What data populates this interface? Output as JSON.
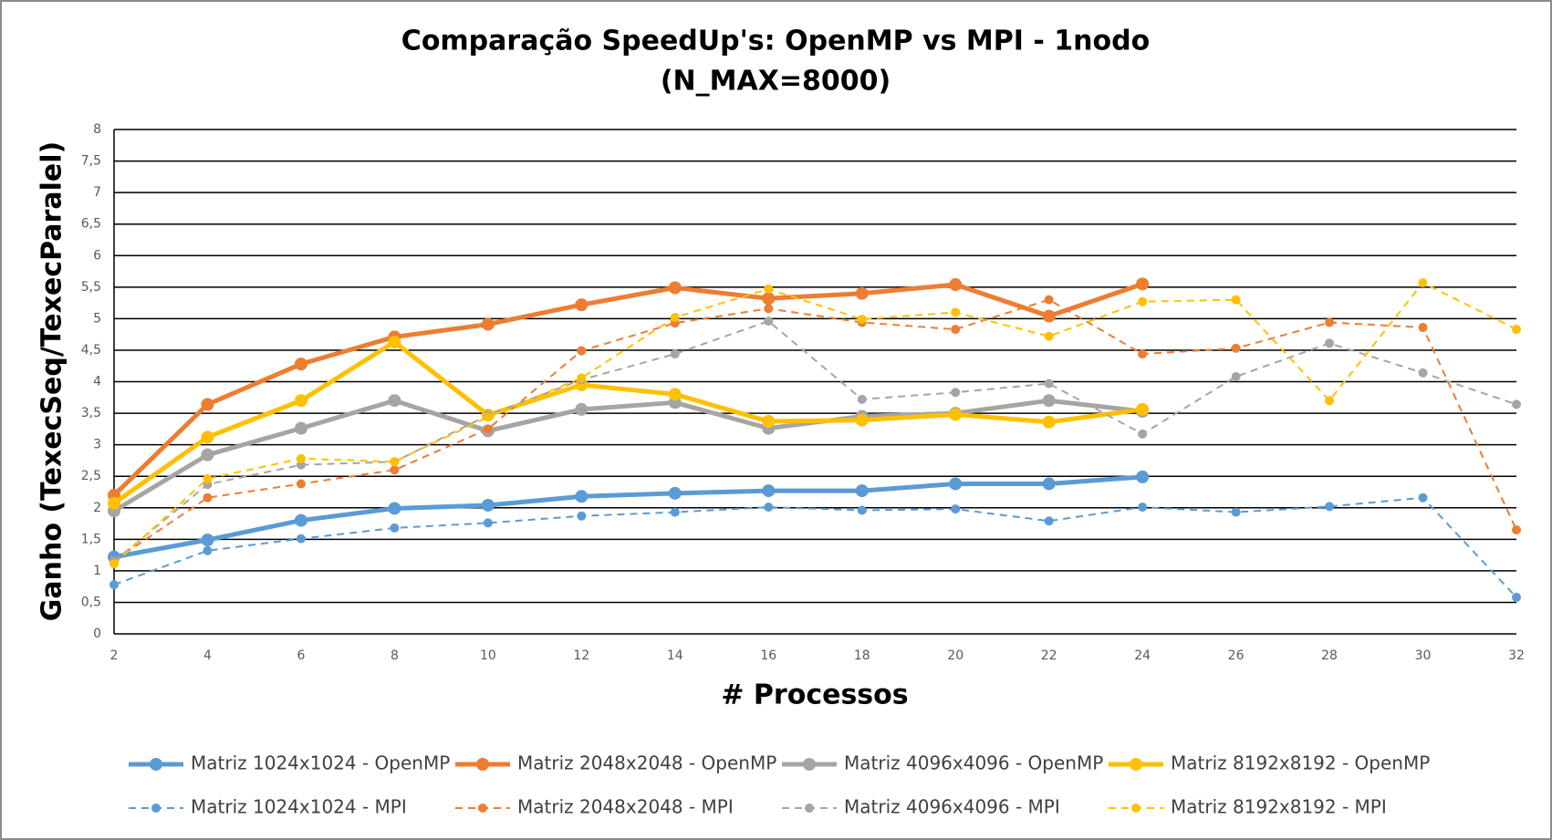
{
  "chart_data": {
    "type": "line",
    "title": "Comparação SpeedUp's: OpenMP vs MPI - 1nodo",
    "subtitle": "(N_MAX=8000)",
    "x_label": "# Processos",
    "y_label": "Ganho (TexecSeq/TexecParalel)",
    "xlim": [
      2,
      32
    ],
    "xticks": [
      2,
      4,
      6,
      8,
      10,
      12,
      14,
      16,
      18,
      20,
      22,
      24,
      26,
      28,
      30,
      32
    ],
    "ylim": [
      0,
      8
    ],
    "yticks": [
      0,
      {
        "value": 0.5,
        "label": "0,5"
      },
      1,
      {
        "value": 1.5,
        "label": "1,5"
      },
      2,
      {
        "value": 2.5,
        "label": "2,5"
      },
      3,
      {
        "value": 3.5,
        "label": "3,5"
      },
      4,
      {
        "value": 4.5,
        "label": "4,5"
      },
      5,
      {
        "value": 5.5,
        "label": "5,5"
      },
      6,
      {
        "value": 6.5,
        "label": "6,5"
      },
      7,
      {
        "value": 7.5,
        "label": "7,5"
      },
      8
    ],
    "grid": true,
    "legend": "bottom",
    "series": [
      {
        "name": "Matriz 1024x1024 - OpenMP",
        "color": "#5b9bd5",
        "dashed": false,
        "x": [
          2,
          4,
          6,
          8,
          10,
          12,
          14,
          16,
          18,
          20,
          22,
          24
        ],
        "values": [
          1.22,
          1.49,
          1.8,
          1.99,
          2.04,
          2.18,
          2.23,
          2.27,
          2.27,
          2.38,
          2.38,
          2.49
        ]
      },
      {
        "name": "Matriz 2048x2048 - OpenMP",
        "color": "#ed7d31",
        "dashed": false,
        "x": [
          2,
          4,
          6,
          8,
          10,
          12,
          14,
          16,
          18,
          20,
          22,
          24
        ],
        "values": [
          2.2,
          3.64,
          4.28,
          4.71,
          4.91,
          5.22,
          5.49,
          5.32,
          5.4,
          5.54,
          5.04,
          5.55
        ]
      },
      {
        "name": "Matriz 4096x4096 - OpenMP",
        "color": "#a5a5a5",
        "dashed": false,
        "x": [
          2,
          4,
          6,
          8,
          10,
          12,
          14,
          16,
          18,
          20,
          22,
          24
        ],
        "values": [
          1.95,
          2.84,
          3.26,
          3.7,
          3.22,
          3.56,
          3.67,
          3.26,
          3.45,
          3.5,
          3.7,
          3.53
        ]
      },
      {
        "name": "Matriz 8192x8192 - OpenMP",
        "color": "#ffc000",
        "dashed": false,
        "x": [
          2,
          4,
          6,
          8,
          10,
          12,
          14,
          16,
          18,
          20,
          22,
          24
        ],
        "values": [
          2.07,
          3.12,
          3.7,
          4.63,
          3.47,
          3.95,
          3.8,
          3.37,
          3.39,
          3.48,
          3.36,
          3.56
        ]
      },
      {
        "name": "Matriz 1024x1024 - MPI",
        "color": "#5b9bd5",
        "dashed": true,
        "x": [
          2,
          4,
          6,
          8,
          10,
          12,
          14,
          16,
          18,
          20,
          22,
          24,
          26,
          28,
          30,
          32
        ],
        "values": [
          0.78,
          1.32,
          1.51,
          1.68,
          1.76,
          1.87,
          1.93,
          2.01,
          1.96,
          1.98,
          1.79,
          2.01,
          1.93,
          2.02,
          2.16,
          0.58
        ]
      },
      {
        "name": "Matriz 2048x2048 - MPI",
        "color": "#ed7d31",
        "dashed": true,
        "x": [
          2,
          4,
          6,
          8,
          10,
          12,
          14,
          16,
          18,
          20,
          22,
          24,
          26,
          28,
          30,
          32
        ],
        "values": [
          1.16,
          2.16,
          2.38,
          2.6,
          3.25,
          4.49,
          4.93,
          5.16,
          4.94,
          4.83,
          5.3,
          4.44,
          4.53,
          4.94,
          4.86,
          1.65
        ]
      },
      {
        "name": "Matriz 4096x4096 - MPI",
        "color": "#a5a5a5",
        "dashed": true,
        "x": [
          2,
          4,
          6,
          8,
          10,
          12,
          14,
          16,
          18,
          20,
          22,
          24,
          26,
          28,
          30,
          32
        ],
        "values": [
          1.15,
          2.37,
          2.68,
          2.73,
          3.47,
          4.03,
          4.44,
          4.96,
          3.72,
          3.83,
          3.97,
          3.17,
          4.08,
          4.61,
          4.14,
          3.64
        ]
      },
      {
        "name": "Matriz 8192x8192 - MPI",
        "color": "#ffc000",
        "dashed": true,
        "x": [
          2,
          4,
          6,
          8,
          10,
          12,
          14,
          16,
          18,
          20,
          22,
          24,
          26,
          28,
          30,
          32
        ],
        "values": [
          1.11,
          2.46,
          2.78,
          2.73,
          3.44,
          4.06,
          5.02,
          5.47,
          4.99,
          5.1,
          4.72,
          5.27,
          5.3,
          3.7,
          5.57,
          4.83
        ]
      }
    ]
  }
}
